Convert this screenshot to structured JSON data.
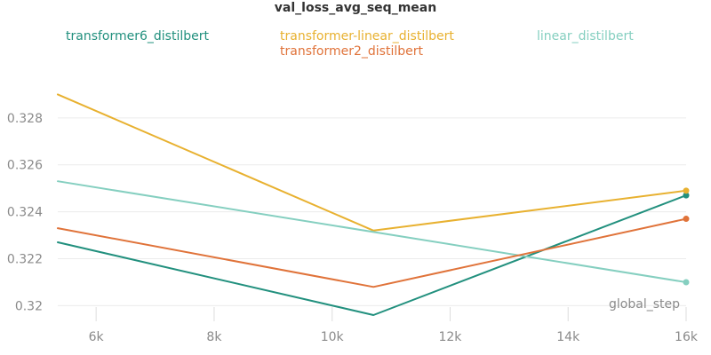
{
  "chart_data": {
    "type": "line",
    "title": "val_loss_avg_seq_mean",
    "xlabel": "global_step",
    "ylabel": "",
    "x_ticks": [
      {
        "value": 6000,
        "label": "6k"
      },
      {
        "value": 8000,
        "label": "8k"
      },
      {
        "value": 10000,
        "label": "10k"
      },
      {
        "value": 12000,
        "label": "12k"
      },
      {
        "value": 14000,
        "label": "14k"
      },
      {
        "value": 16000,
        "label": "16k"
      }
    ],
    "y_ticks": [
      {
        "value": 0.32,
        "label": "0.32"
      },
      {
        "value": 0.322,
        "label": "0.322"
      },
      {
        "value": 0.324,
        "label": "0.324"
      },
      {
        "value": 0.326,
        "label": "0.326"
      },
      {
        "value": 0.328,
        "label": "0.328"
      }
    ],
    "xlim": [
      5350,
      16000
    ],
    "ylim": [
      0.3196,
      0.3303
    ],
    "grid": true,
    "legend_position": "top",
    "series": [
      {
        "name": "transformer6_distilbert",
        "color": "#22907e",
        "x": [
          5350,
          10700,
          16000
        ],
        "y": [
          0.3227,
          0.3196,
          0.3247
        ]
      },
      {
        "name": "transformer-linear_distilbert",
        "color": "#e8b130",
        "x": [
          5350,
          10700,
          16000
        ],
        "y": [
          0.329,
          0.3232,
          0.3249
        ]
      },
      {
        "name": "linear_distilbert",
        "color": "#85cfc0",
        "x": [
          5350,
          16000
        ],
        "y": [
          0.3253,
          0.321
        ]
      },
      {
        "name": "transformer2_distilbert",
        "color": "#e0733a",
        "x": [
          5350,
          10700,
          16000
        ],
        "y": [
          0.3233,
          0.3208,
          0.3237
        ]
      }
    ]
  }
}
